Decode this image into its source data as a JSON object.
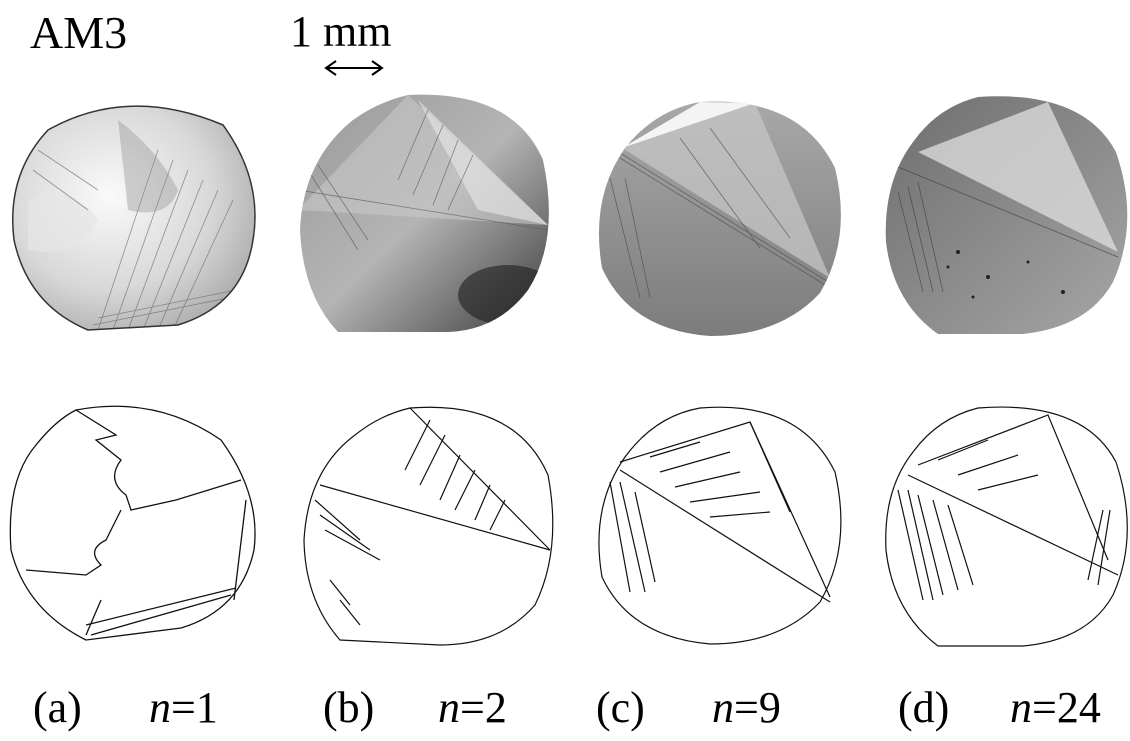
{
  "figure": {
    "sample_label": "AM3",
    "scale_bar": {
      "text": "1 mm"
    },
    "panels": [
      {
        "letter": "(a)",
        "n_symbol": "n",
        "n_value": "=1"
      },
      {
        "letter": "(b)",
        "n_symbol": "n",
        "n_value": "=2"
      },
      {
        "letter": "(c)",
        "n_symbol": "n",
        "n_value": "=9"
      },
      {
        "letter": "(d)",
        "n_symbol": "n",
        "n_value": "=24"
      }
    ]
  }
}
